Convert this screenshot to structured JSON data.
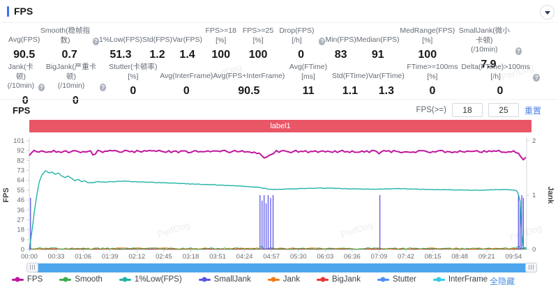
{
  "header": {
    "title": "FPS"
  },
  "watermark_text": "PerfDog",
  "stats_row1": [
    {
      "label": "Avg(FPS)",
      "value": "90.5",
      "help": false
    },
    {
      "label": "Smooth(稳帧指数)",
      "value": "0.7",
      "help": true
    },
    {
      "label": "1%Low(FPS)",
      "value": "51.3",
      "help": false
    },
    {
      "label": "Std(FPS)",
      "value": "1.2",
      "help": false
    },
    {
      "label": "Var(FPS)",
      "value": "1.4",
      "help": false
    },
    {
      "label": "FPS>=18 [%]",
      "value": "100",
      "help": false
    },
    {
      "label": "FPS>=25 [%]",
      "value": "100",
      "help": false
    },
    {
      "label": "Drop(FPS) [/h]",
      "value": "0",
      "help": true
    },
    {
      "label": "Min(FPS)",
      "value": "83",
      "help": false
    },
    {
      "label": "Median(FPS)",
      "value": "91",
      "help": false
    },
    {
      "label": "MedRange(FPS)[%]",
      "value": "100",
      "help": false
    },
    {
      "label": "SmallJank(微小卡顿)\n(/10min)",
      "value": "7.9",
      "help": true
    }
  ],
  "stats_row2": [
    {
      "label": "Jank(卡顿)\n(/10min)",
      "value": "0",
      "help": true
    },
    {
      "label": "BigJank(严重卡顿)\n(/10min)",
      "value": "0",
      "help": true
    },
    {
      "label": "Stutter(卡顿率) [%]",
      "value": "0",
      "help": false
    },
    {
      "label": "Avg(InterFrame)",
      "value": "0",
      "help": false
    },
    {
      "label": "Avg(FPS+InterFrame)",
      "value": "90.5",
      "help": false
    },
    {
      "label": "Avg(FTime) [ms]",
      "value": "11",
      "help": false
    },
    {
      "label": "Std(FTime)",
      "value": "1.1",
      "help": false
    },
    {
      "label": "Var(FTime)",
      "value": "1.3",
      "help": false
    },
    {
      "label": "FTime>=100ms [%]",
      "value": "0",
      "help": false
    },
    {
      "label": "Delta(FTime)>100ms [/h]",
      "value": "0",
      "help": true
    }
  ],
  "section": {
    "title": "FPS",
    "filter_label": "FPS(>=)",
    "inputs": [
      "18",
      "25"
    ],
    "reset_label": "重置"
  },
  "label_bar": {
    "text": "label1",
    "color": "#e95666"
  },
  "footer": {
    "hide_all": "全隐藏"
  },
  "chart_data": {
    "type": "line",
    "title": "FPS",
    "x_ticks": [
      "00:00",
      "00:33",
      "01:06",
      "01:39",
      "02:12",
      "02:45",
      "03:18",
      "03:51",
      "04:24",
      "04:57",
      "05:30",
      "06:03",
      "06:36",
      "07:09",
      "07:42",
      "08:15",
      "08:48",
      "09:21",
      "09:54"
    ],
    "x_tick_seconds": 33,
    "x_range_seconds": [
      0,
      610
    ],
    "y_left": {
      "label": "FPS",
      "ticks": [
        0,
        9,
        18,
        27,
        36,
        46,
        55,
        64,
        73,
        82,
        92,
        101
      ],
      "range": [
        0,
        101
      ]
    },
    "y_right": {
      "label": "Jank",
      "ticks": [
        0,
        1,
        2
      ],
      "range": [
        0,
        2
      ]
    },
    "grid": false,
    "legend_position": "bottom",
    "draw_order": [
      "InterFrame",
      "Stutter",
      "BigJank",
      "Jank",
      "Smooth",
      "SmallJank",
      "1%Low(FPS)",
      "FPS"
    ],
    "series": [
      {
        "name": "FPS",
        "color": "#c0169c",
        "axis": "left",
        "width": 2,
        "step": 3,
        "jitter": 1.1,
        "keypoints": [
          [
            0,
            87
          ],
          [
            2,
            91
          ],
          [
            76,
            91
          ],
          [
            80,
            86.5
          ],
          [
            84,
            91
          ],
          [
            270,
            91
          ],
          [
            282,
            90
          ],
          [
            289,
            84
          ],
          [
            295,
            88
          ],
          [
            302,
            91
          ],
          [
            424,
            91
          ],
          [
            428,
            89.5
          ],
          [
            433,
            91
          ],
          [
            596,
            91
          ],
          [
            602,
            89
          ],
          [
            605,
            82.5
          ],
          [
            608,
            85
          ],
          [
            610,
            86
          ]
        ]
      },
      {
        "name": "Smooth",
        "color": "#3cae4e",
        "axis": "left",
        "width": 1,
        "step": 3,
        "jitter": 0.8,
        "keypoints": [
          [
            0,
            0.8
          ],
          [
            282,
            0.8
          ],
          [
            285,
            3.2
          ],
          [
            288,
            0.8
          ],
          [
            597,
            0.8
          ],
          [
            600,
            3
          ],
          [
            603,
            0.8
          ],
          [
            610,
            0.8
          ]
        ]
      },
      {
        "name": "1%Low(FPS)",
        "color": "#20b3a6",
        "axis": "left",
        "width": 1.4,
        "step": 2,
        "jitter": 0.25,
        "keypoints": [
          [
            0,
            0
          ],
          [
            3,
            15
          ],
          [
            6,
            34
          ],
          [
            9,
            50
          ],
          [
            12,
            62
          ],
          [
            15,
            69
          ],
          [
            20,
            73
          ],
          [
            24,
            71
          ],
          [
            28,
            72
          ],
          [
            32,
            70
          ],
          [
            36,
            71
          ],
          [
            40,
            68
          ],
          [
            44,
            67
          ],
          [
            48,
            68
          ],
          [
            52,
            66
          ],
          [
            56,
            64
          ],
          [
            60,
            65
          ],
          [
            64,
            63
          ],
          [
            68,
            64
          ],
          [
            72,
            62
          ],
          [
            78,
            62
          ],
          [
            84,
            63
          ],
          [
            92,
            62.5
          ],
          [
            102,
            63
          ],
          [
            116,
            63.5
          ],
          [
            130,
            63
          ],
          [
            146,
            62.5
          ],
          [
            162,
            62
          ],
          [
            178,
            61.5
          ],
          [
            194,
            61
          ],
          [
            210,
            60.5
          ],
          [
            226,
            60
          ],
          [
            240,
            59.5
          ],
          [
            254,
            59
          ],
          [
            266,
            58.5
          ],
          [
            276,
            58
          ],
          [
            284,
            57.5
          ],
          [
            292,
            56
          ],
          [
            300,
            55.8
          ],
          [
            315,
            56.2
          ],
          [
            335,
            56.6
          ],
          [
            355,
            57
          ],
          [
            375,
            56.8
          ],
          [
            395,
            56.4
          ],
          [
            415,
            56.1
          ],
          [
            435,
            56.2
          ],
          [
            455,
            56.5
          ],
          [
            475,
            56
          ],
          [
            495,
            55.6
          ],
          [
            515,
            55.5
          ],
          [
            535,
            55.2
          ],
          [
            555,
            55
          ],
          [
            570,
            55.4
          ],
          [
            584,
            55.6
          ],
          [
            594,
            55.2
          ],
          [
            599,
            54
          ],
          [
            602,
            45
          ],
          [
            604,
            15
          ],
          [
            606,
            2
          ],
          [
            610,
            1
          ]
        ]
      },
      {
        "name": "SmallJank",
        "color": "#5b55e8",
        "axis": "right",
        "width": 1.3,
        "spikes": [
          [
            1.5,
            0.95
          ],
          [
            283,
            1
          ],
          [
            285.5,
            0.9
          ],
          [
            288,
            1
          ],
          [
            290.5,
            0.85
          ],
          [
            293,
            1
          ],
          [
            296,
            0.95
          ],
          [
            299,
            1
          ],
          [
            430,
            1
          ],
          [
            600,
            1
          ],
          [
            602,
            0.9
          ],
          [
            604,
            1
          ],
          [
            606,
            0.95
          ]
        ]
      },
      {
        "name": "Jank",
        "color": "#ef7d1a",
        "axis": "right",
        "width": 1,
        "step": 4,
        "jitter": 0.012,
        "keypoints": [
          [
            0,
            0.018
          ],
          [
            610,
            0.018
          ]
        ]
      },
      {
        "name": "BigJank",
        "color": "#e83632",
        "axis": "right",
        "width": 1,
        "step": 6,
        "jitter": 0.004,
        "keypoints": [
          [
            0,
            0.006
          ],
          [
            610,
            0.006
          ]
        ]
      },
      {
        "name": "Stutter",
        "color": "#4f8ff7",
        "axis": "right",
        "width": 1,
        "step": 6,
        "jitter": 0.005,
        "keypoints": [
          [
            0,
            0.008
          ],
          [
            610,
            0.008
          ]
        ]
      },
      {
        "name": "InterFrame",
        "color": "#35cce6",
        "axis": "left",
        "width": 1,
        "step": 5,
        "jitter": 0.2,
        "keypoints": [
          [
            0,
            0.25
          ],
          [
            610,
            0.25
          ]
        ]
      }
    ]
  }
}
